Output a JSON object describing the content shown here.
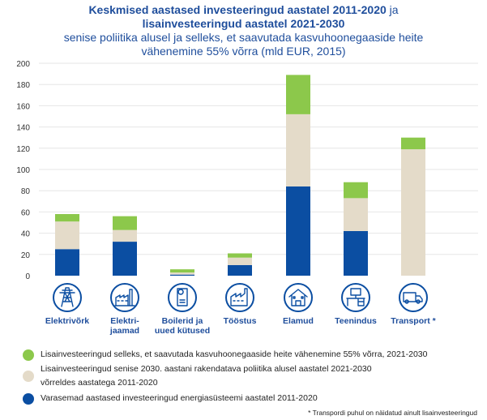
{
  "title": {
    "line1_bold": "Keskmised aastased investeeringud aastatel 2011-2020",
    "line1_rest": " ja",
    "line2_bold": "lisainvesteeringud aastatel 2021-2030",
    "line3": "senise poliitika alusel ja selleks, et saavutada kasvuhoonegaaside heite",
    "line4": "vähenemine 55% võrra (mld EUR, 2015)"
  },
  "colors": {
    "green": "#8cc84b",
    "beige": "#e4dbc9",
    "blue": "#0b4ea2",
    "axis_text": "#333333",
    "grid": "#e6e6e6",
    "icon": "#0b4ea2"
  },
  "chart_data": {
    "type": "bar",
    "stacked": true,
    "categories": [
      "Elektrivõrk",
      "Elektri-jaamad",
      "Boilerid ja uued kütused",
      "Tööstus",
      "Elamud",
      "Teenindus",
      "Transport *"
    ],
    "category_lines": [
      [
        "Elektrivõrk"
      ],
      [
        "Elektri-",
        "jaamad"
      ],
      [
        "Boilerid ja",
        "uued kütused"
      ],
      [
        "Tööstus"
      ],
      [
        "Elamud"
      ],
      [
        "Teenindus"
      ],
      [
        "Transport *"
      ]
    ],
    "icons": [
      "power-pylon-icon",
      "power-plant-icon",
      "boiler-icon",
      "factory-icon",
      "house-icon",
      "office-desk-icon",
      "truck-icon"
    ],
    "series": [
      {
        "key": "blue",
        "values": [
          25,
          32,
          1,
          10,
          84,
          42,
          0
        ]
      },
      {
        "key": "beige",
        "values": [
          26,
          11,
          2,
          7,
          68,
          31,
          119
        ]
      },
      {
        "key": "green",
        "values": [
          7,
          13,
          3,
          4,
          37,
          15,
          11
        ]
      }
    ],
    "ylim": [
      0,
      200
    ],
    "yticks": [
      0,
      20,
      40,
      60,
      80,
      100,
      120,
      140,
      160,
      180,
      200
    ],
    "grid": true
  },
  "legend": [
    {
      "key": "green",
      "lines": [
        "Lisainvesteeringud selleks, et saavutada kasvuhoonegaaside heite vähenemine 55% võrra, 2021-2030"
      ]
    },
    {
      "key": "beige",
      "lines": [
        "Lisainvesteeringud senise 2030. aastani rakendatava poliitika alusel aastatel 2021-2030",
        "võrreldes aastatega 2011-2020"
      ]
    },
    {
      "key": "blue",
      "lines": [
        "Varasemad aastased investeeringud energiasüsteemi aastatel 2011-2020"
      ]
    }
  ],
  "footnote": "* Transpordi puhul on näidatud ainult lisainvesteeringud"
}
